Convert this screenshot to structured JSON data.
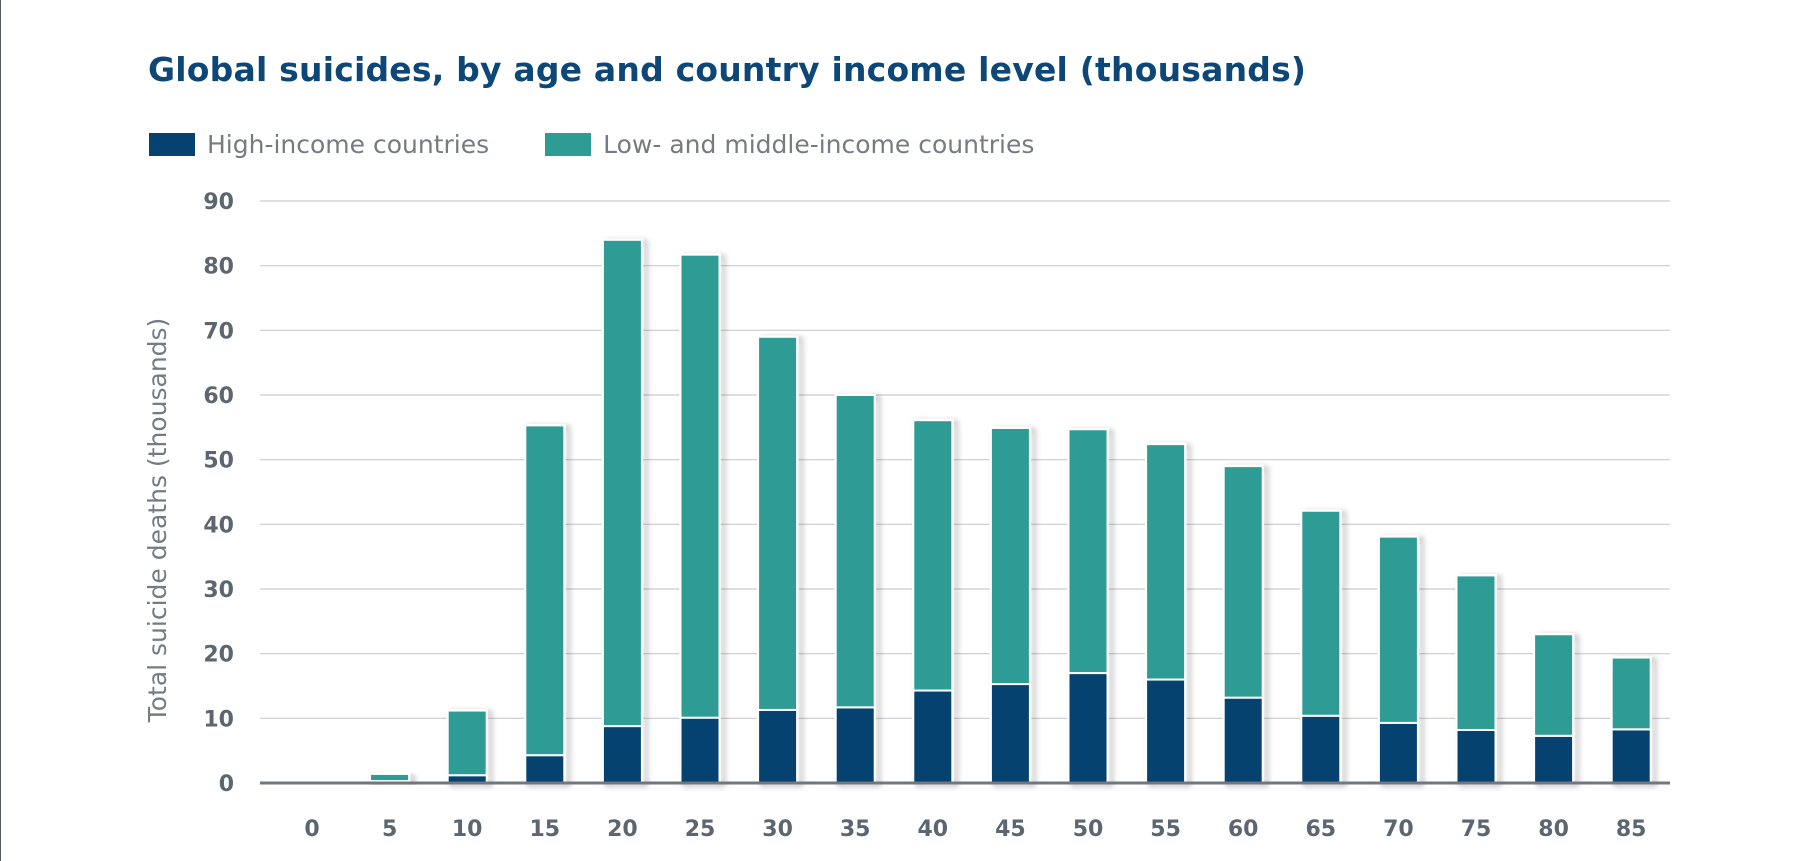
{
  "chart_data": {
    "type": "bar",
    "stacked": true,
    "title": "Global suicides, by age and country income level (thousands)",
    "ylabel": "Total suicide deaths (thousands)",
    "xlabel": "",
    "categories": [
      "0",
      "5",
      "10",
      "15",
      "20",
      "25",
      "30",
      "35",
      "40",
      "45",
      "50",
      "55",
      "60",
      "65",
      "70",
      "75",
      "80",
      "85"
    ],
    "ylim": [
      0,
      90
    ],
    "yticks": [
      0,
      10,
      20,
      30,
      40,
      50,
      60,
      70,
      80,
      90
    ],
    "grid": true,
    "legend_position": "top-left",
    "series": [
      {
        "name": "High-income countries",
        "color": "#06426f",
        "values": [
          0,
          0.3,
          1.2,
          4.3,
          8.8,
          10.1,
          11.3,
          11.7,
          14.3,
          15.3,
          17.0,
          16.0,
          13.2,
          10.4,
          9.3,
          8.2,
          7.3,
          8.3
        ]
      },
      {
        "name": "Low- and middle-income countries",
        "color": "#2e9c95",
        "values": [
          0,
          1.1,
          10.0,
          51.0,
          75.2,
          71.6,
          57.7,
          48.3,
          41.8,
          39.6,
          37.7,
          36.4,
          35.8,
          31.7,
          28.8,
          23.9,
          15.7,
          11.1
        ]
      }
    ]
  }
}
